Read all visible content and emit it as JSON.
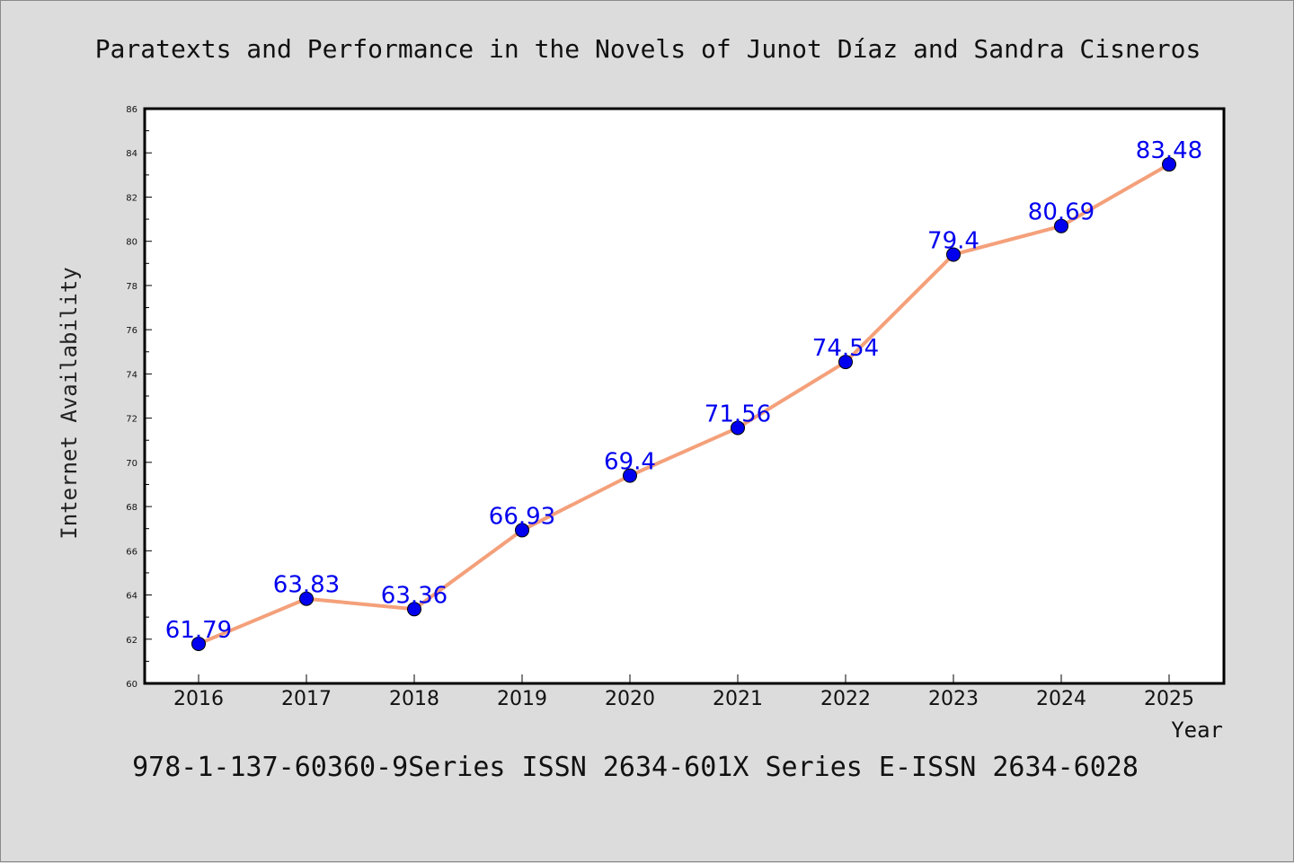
{
  "chart_data": {
    "type": "line",
    "title": "Paratexts and Performance in the Novels of Junot Díaz and Sandra Cisneros",
    "footer": "978-1-137-60360-9Series ISSN 2634-601X Series E-ISSN 2634-6028",
    "xlabel": "Year",
    "ylabel": "Internet Availability",
    "categories": [
      "2016",
      "2017",
      "2018",
      "2019",
      "2020",
      "2021",
      "2022",
      "2023",
      "2024",
      "2025"
    ],
    "values": [
      61.79,
      63.83,
      63.36,
      66.93,
      69.4,
      71.56,
      74.54,
      79.4,
      80.69,
      83.48
    ],
    "data_labels": [
      "61.79",
      "63.83",
      "63.36",
      "66.93",
      "69.4",
      "71.56",
      "74.54",
      "79.4",
      "80.69",
      "83.48"
    ],
    "ylim": [
      60,
      86
    ],
    "yticks": [
      "60",
      "62",
      "64",
      "66",
      "68",
      "70",
      "72",
      "74",
      "76",
      "78",
      "80",
      "82",
      "84",
      "86"
    ],
    "grid": false,
    "line_color": "#f4a07a",
    "marker_color": "#0000ee",
    "label_color": "#0000ee"
  }
}
